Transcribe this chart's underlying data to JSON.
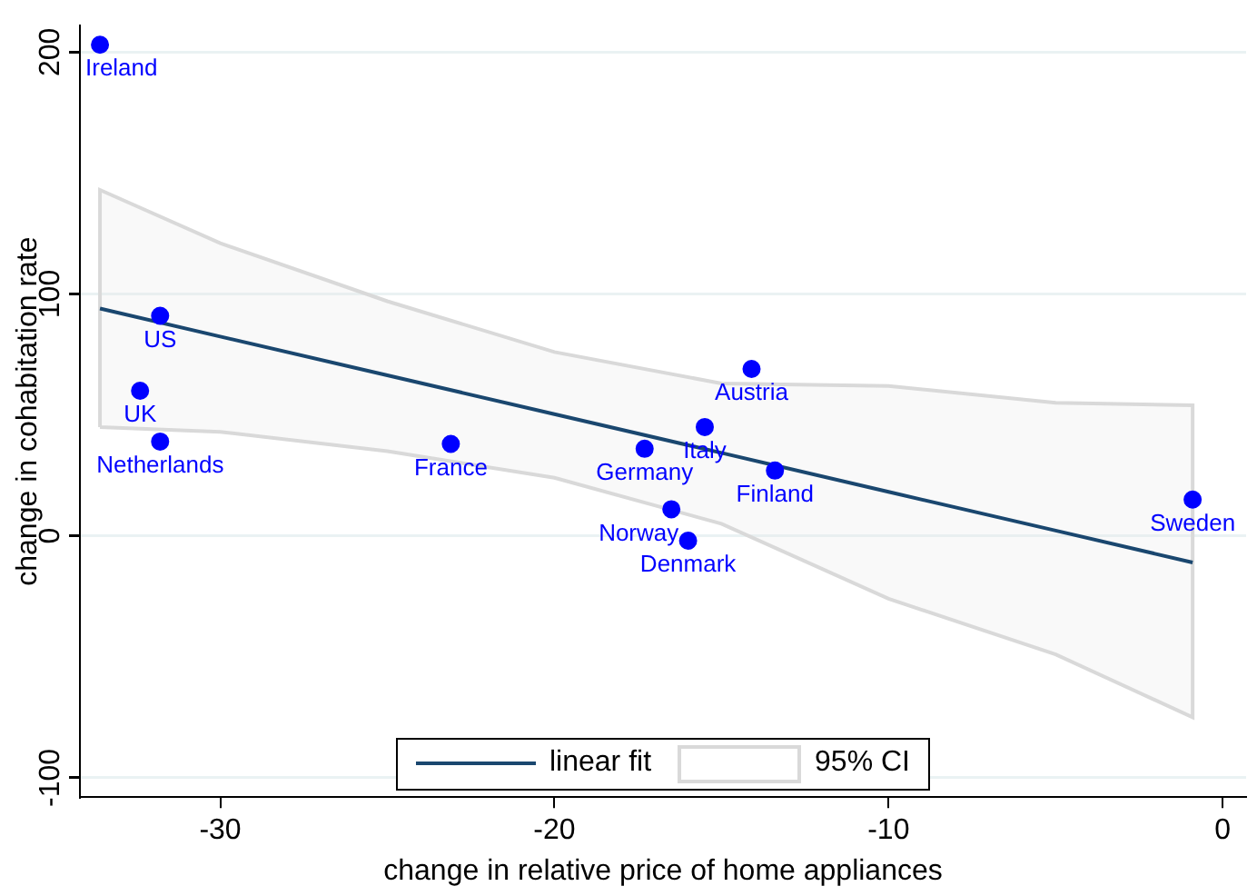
{
  "chart_data": {
    "type": "scatter",
    "xlabel": "change in relative price of home appliances",
    "ylabel": "change in cohabitation rate",
    "xlim": [
      -34.2,
      0.7
    ],
    "xticks": [
      -30,
      -20,
      -10,
      0
    ],
    "ylim": [
      -108,
      211
    ],
    "yticks": [
      -100,
      0,
      100,
      200
    ],
    "grid": "y",
    "legend": "bottom",
    "marker": "circle",
    "series": [
      {
        "type": "line",
        "name": "linear fit",
        "color": "#1a476f",
        "marker": "none",
        "x": [
          -33.6,
          -30,
          -25,
          -20,
          -15,
          -10,
          -5,
          -0.9
        ],
        "values": [
          94,
          82.4,
          66.4,
          50.3,
          34.3,
          18.2,
          2.2,
          -11
        ],
        "lower": [
          45,
          43,
          35,
          24,
          5,
          -26,
          -49,
          -75
        ],
        "upper": [
          143,
          121,
          97,
          76,
          63,
          62,
          55,
          54
        ]
      },
      {
        "color": "#0000ff",
        "x": [
          -33.6,
          -31.8,
          -32.4,
          -31.8,
          -23.1,
          -17.3,
          -15.5,
          -14.1,
          -13.4,
          -16.5,
          -16.0,
          -0.9
        ],
        "values": [
          203,
          91,
          60,
          39,
          38,
          36,
          45,
          69,
          27,
          11,
          -2,
          15
        ]
      }
    ],
    "annotations": [
      "95% CI",
      {
        "text": "Ireland",
        "x": -33.6,
        "y": 203
      },
      {
        "text": "US",
        "x": -31.8,
        "y": 91
      },
      {
        "text": "UK",
        "x": -32.4,
        "y": 60
      },
      {
        "text": "Netherlands",
        "x": -31.8,
        "y": 39
      },
      {
        "text": "France",
        "x": -23.1,
        "y": 38
      },
      {
        "text": "Germany",
        "x": -17.3,
        "y": 36
      },
      {
        "text": "Italy",
        "x": -15.5,
        "y": 45
      },
      {
        "text": "Austria",
        "x": -14.1,
        "y": 69
      },
      {
        "text": "Finland",
        "x": -13.4,
        "y": 27
      },
      {
        "text": "Norway",
        "x": -16.5,
        "y": 11
      },
      {
        "text": "Denmark",
        "x": -16.0,
        "y": -2
      },
      {
        "text": "Sweden",
        "x": -0.9,
        "y": 15
      }
    ]
  }
}
